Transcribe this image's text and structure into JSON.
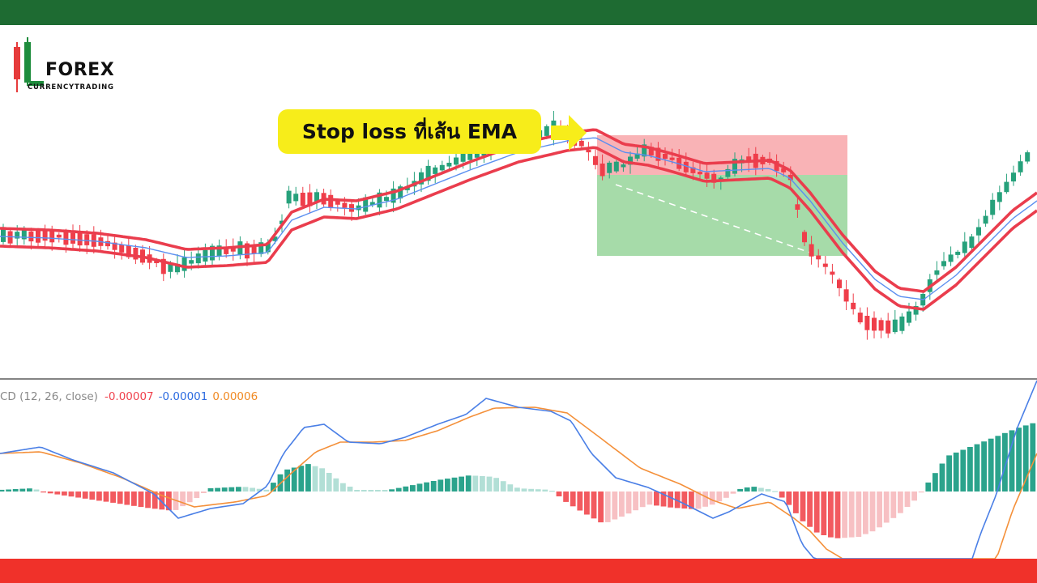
{
  "logo": {
    "main": "FOREX",
    "sub": "CURRENCYTRADING"
  },
  "callout": {
    "text": "Stop loss ที่เส้น EMA"
  },
  "colors": {
    "top_bar": "#1e6b32",
    "bottom_bar": "#f0312a",
    "bull": "#26a17b",
    "bear": "#ef3e4a",
    "ema_band": "#ea3d4d",
    "ema_mid": "#5b8ff0",
    "stop_zone": "#f9b3b6",
    "target_zone": "#a6dba9",
    "macd_line": "#4a7fe6",
    "signal_line": "#f4903a"
  },
  "chart_data": [
    {
      "type": "candlestick",
      "overlays": [
        "EMA upper band",
        "EMA lower band",
        "EMA middle"
      ],
      "position_tool": {
        "stop_zone": "red",
        "target_zone": "green"
      }
    },
    {
      "type": "bar+line",
      "label": "CD (12, 26, close)",
      "values": {
        "histogram": "-0.00007",
        "macd": "-0.00001",
        "signal": "0.00006"
      }
    }
  ]
}
